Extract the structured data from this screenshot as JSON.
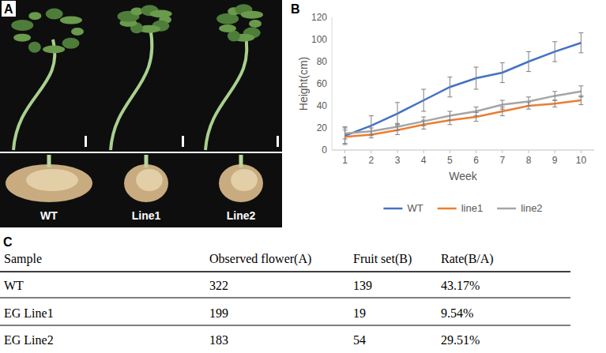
{
  "panel_letters": [
    "A",
    "B",
    "C"
  ],
  "panel_a": {
    "labels": [
      "WT",
      "Line1",
      "Line2"
    ]
  },
  "chart_data": {
    "type": "line",
    "x_label": "Week",
    "y_label": "Height(cm)",
    "x": [
      1,
      2,
      3,
      4,
      5,
      6,
      7,
      8,
      9,
      10
    ],
    "xlim": [
      0.5,
      10.5
    ],
    "xticks": [
      1,
      2,
      3,
      4,
      5,
      6,
      7,
      8,
      9,
      10
    ],
    "ylim": [
      0,
      120
    ],
    "yticks": [
      0,
      20,
      40,
      60,
      80,
      100,
      120
    ],
    "grid": false,
    "legend": "bottom",
    "series": [
      {
        "name": "WT",
        "color": "#4472c4",
        "values": [
          13,
          22,
          33,
          45,
          57,
          65,
          70,
          80,
          89,
          97
        ],
        "errors": [
          8,
          9,
          10,
          10,
          9,
          10,
          9,
          9,
          9,
          9
        ]
      },
      {
        "name": "line1",
        "color": "#ed7d31",
        "values": [
          12,
          14,
          18,
          23,
          27,
          30,
          35,
          40,
          42,
          45
        ],
        "errors": [
          6,
          3,
          4,
          4,
          4,
          4,
          4,
          3,
          3,
          4
        ]
      },
      {
        "name": "line2",
        "color": "#a5a5a5",
        "values": [
          15,
          17,
          21,
          26,
          31,
          35,
          41,
          44,
          49,
          53
        ],
        "errors": [
          5,
          3,
          3,
          4,
          4,
          4,
          4,
          4,
          4,
          5
        ]
      }
    ]
  },
  "table": {
    "header": [
      "Sample",
      "Observed flower(A)",
      "Fruit set(B)",
      "Rate(B/A)"
    ],
    "rows": [
      [
        "WT",
        "322",
        "139",
        "43.17%"
      ],
      [
        "EG Line1",
        "199",
        "19",
        "9.54%"
      ],
      [
        "EG Line2",
        "183",
        "54",
        "29.51%"
      ]
    ]
  }
}
